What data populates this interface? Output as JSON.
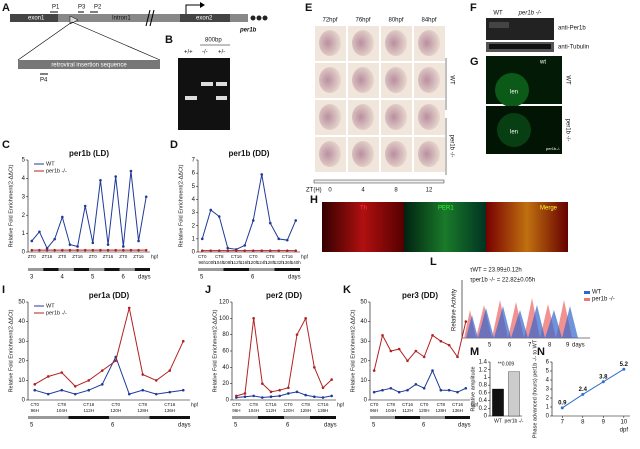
{
  "panel_letters": [
    "A",
    "B",
    "C",
    "D",
    "E",
    "F",
    "G",
    "H",
    "I",
    "J",
    "K",
    "L",
    "M",
    "N"
  ],
  "panel_a": {
    "exon1": "exon1",
    "p1": "P1",
    "p3": "P3",
    "p2": "P2",
    "intron": "Intron1",
    "exon2": "exon2",
    "gene": "per1b",
    "insert": "retroviral insertion sequence",
    "p4": "P4"
  },
  "panel_b": {
    "size": "800bp",
    "lanes": [
      "+/+",
      "-/-",
      "+/-"
    ]
  },
  "panel_e": {
    "times": [
      "72hpf",
      "76hpf",
      "80hpf",
      "84hpf"
    ],
    "wt": "WT",
    "mut": "per1b -/-",
    "zt_label": "ZT(H)",
    "zt": [
      "0",
      "4",
      "8",
      "12"
    ]
  },
  "panel_f": {
    "wt": "WT",
    "mut": "per1b -/-",
    "top": "anti-Per1b",
    "bottom": "anti-Tubulin"
  },
  "panel_g": {
    "arrow": "wt",
    "wt": "WT",
    "len1": "len",
    "len2": "len",
    "mut": "per1b -/-",
    "mut_small": "per1b-/-"
  },
  "panel_h": {
    "c1": "Th",
    "c2": "PER1",
    "c3": "Merge"
  },
  "panel_l": {
    "tau_wt": "τWT = 23.99±0.12h",
    "tau_mut": "τper1b -/- = 22.82±0.05h",
    "y_label": "Relative Activity",
    "legend": [
      "WT",
      "per1b -/-"
    ],
    "ticks": [
      "5",
      "6",
      "7",
      "8",
      "9"
    ],
    "unit": "days"
  },
  "chart_data": [
    {
      "type": "line",
      "title": "per1b (LD)",
      "y_label": "Relative Fold Enrichment(2-ΔΔCt)",
      "categories": [
        "ZT0",
        null,
        "ZT16",
        null,
        "ZT0",
        null,
        "ZT16",
        null,
        "ZT0",
        null,
        "ZT16",
        null,
        "ZT0",
        null,
        "ZT16",
        null
      ],
      "series": [
        {
          "name": "WT",
          "color": "#1f3a99",
          "values": [
            0.6,
            1.1,
            0.2,
            0.7,
            1.9,
            0.4,
            0.3,
            2.5,
            0.5,
            3.9,
            0.4,
            4.1,
            0.3,
            4.4,
            0.6,
            3.0
          ]
        },
        {
          "name": "per1b -/-",
          "color": "#b22222",
          "values": [
            0.1,
            0.1,
            0.1,
            0.1,
            0.1,
            0.1,
            0.1,
            0.1,
            0.1,
            0.1,
            0.1,
            0.1,
            0.1,
            0.1,
            0.1,
            0.1
          ]
        }
      ],
      "ylim": [
        0,
        5
      ],
      "yticks": [
        0,
        1,
        2,
        3,
        4,
        5
      ],
      "day_labels": [
        "3",
        "4",
        "5",
        "6"
      ],
      "day_unit": "days",
      "x_unit": "hpf",
      "legend": true
    },
    {
      "type": "line",
      "title": "per1b (DD)",
      "y_label": "Relative Fold Enrichment(2-ΔΔCt)",
      "categories": [
        "CT0",
        null,
        "CT8",
        null,
        "CT16",
        null,
        "CT0",
        null,
        "CT8",
        null,
        "CT16",
        null
      ],
      "hour_labels": [
        "96h",
        "100h",
        "104h",
        "108h",
        "112h",
        "116h",
        "120h",
        "124h",
        "128h",
        "132h",
        "136h",
        "140h"
      ],
      "series": [
        {
          "name": "WT",
          "color": "#1f3a99",
          "values": [
            1.0,
            3.2,
            2.7,
            0.3,
            0.2,
            0.5,
            2.4,
            5.9,
            2.2,
            1.0,
            0.9,
            2.4
          ]
        },
        {
          "name": "per1b -/-",
          "color": "#b22222",
          "values": [
            0.1,
            0.1,
            0.1,
            0.1,
            0.1,
            0.1,
            0.1,
            0.1,
            0.1,
            0.1,
            0.1,
            0.1
          ]
        }
      ],
      "ylim": [
        0,
        7
      ],
      "yticks": [
        0,
        1,
        2,
        3,
        4,
        5,
        6,
        7
      ],
      "day_labels": [
        "5",
        "6"
      ],
      "day_unit": "days",
      "x_unit": "hpf",
      "legend": false
    },
    {
      "type": "line",
      "title": "per1a (DD)",
      "y_label": "Relative Fold Enrichment(2-ΔΔCt)",
      "categories": [
        "CT0",
        null,
        "CT8",
        null,
        "CT16",
        null,
        "CT0",
        null,
        "CT8",
        null,
        "CT16",
        null
      ],
      "hour_labels": [
        "96H",
        null,
        "104H",
        null,
        "112H",
        null,
        "120H",
        null,
        "128H",
        null,
        "136H",
        null
      ],
      "series": [
        {
          "name": "WT",
          "color": "#1f3a99",
          "values": [
            5,
            3,
            5,
            3,
            5,
            8,
            22,
            3,
            5,
            3,
            4,
            5
          ]
        },
        {
          "name": "per1b -/-",
          "color": "#b22222",
          "values": [
            8,
            12,
            14,
            7,
            10,
            15,
            20,
            47,
            13,
            10,
            15,
            30
          ]
        }
      ],
      "ylim": [
        0,
        50
      ],
      "yticks": [
        0,
        10,
        20,
        30,
        40,
        50
      ],
      "day_labels": [
        "5",
        "6"
      ],
      "day_unit": "days",
      "x_unit": "hpf",
      "legend": true
    },
    {
      "type": "line",
      "title": "per2 (DD)",
      "y_label": "Relative Fold Enrichment(2-ΔΔCt)",
      "categories": [
        "CT0",
        null,
        "CT8",
        null,
        "CT16",
        null,
        "CT0",
        null,
        "CT8",
        null,
        "CT16",
        null
      ],
      "hour_labels": [
        "96H",
        null,
        "104H",
        null,
        "112H",
        null,
        "120H",
        null,
        "128H",
        null,
        "136H",
        null
      ],
      "series": [
        {
          "name": "WT",
          "color": "#1f3a99",
          "values": [
            3,
            4,
            5,
            3,
            4,
            5,
            8,
            10,
            6,
            4,
            3,
            5
          ]
        },
        {
          "name": "per1b -/-",
          "color": "#b22222",
          "values": [
            5,
            8,
            100,
            20,
            10,
            12,
            15,
            80,
            100,
            40,
            15,
            25
          ]
        }
      ],
      "ylim": [
        0,
        120
      ],
      "yticks": [
        0,
        20,
        40,
        60,
        80,
        100,
        120
      ],
      "day_labels": [
        "5",
        "6"
      ],
      "day_unit": "days",
      "x_unit": "hpf",
      "legend": false
    },
    {
      "type": "line",
      "title": "per3 (DD)",
      "y_label": "Relative Fold Enrichment(2-ΔΔCt)",
      "categories": [
        "CT0",
        null,
        "CT8",
        null,
        "CT16",
        null,
        "CT0",
        null,
        "CT8",
        null,
        "CT16",
        null
      ],
      "hour_labels": [
        "96H",
        null,
        "104H",
        null,
        "112H",
        null,
        "120H",
        null,
        "128H",
        null,
        "136H",
        null
      ],
      "series": [
        {
          "name": "WT",
          "color": "#1f3a99",
          "values": [
            4,
            5,
            6,
            4,
            5,
            8,
            6,
            15,
            5,
            5,
            4,
            6
          ]
        },
        {
          "name": "per1b -/-",
          "color": "#b22222",
          "values": [
            15,
            33,
            25,
            26,
            20,
            25,
            22,
            33,
            30,
            28,
            22,
            40
          ]
        }
      ],
      "ylim": [
        0,
        50
      ],
      "yticks": [
        0,
        10,
        20,
        30,
        40,
        50
      ],
      "day_labels": [
        "5",
        "6"
      ],
      "day_unit": "days",
      "x_unit": "hpf",
      "legend": false
    },
    {
      "type": "bar",
      "y_label": "Relative amplitude",
      "categories": [
        "WT",
        "per1b -/-"
      ],
      "values": [
        0.7,
        1.15
      ],
      "colors": [
        "#111111",
        "#cccccc"
      ],
      "annotation": "**0.009",
      "ylim": [
        0,
        1.4
      ],
      "yticks": [
        0,
        0.2,
        0.4,
        0.6,
        0.8,
        1,
        1.2,
        1.4
      ]
    },
    {
      "type": "scatterline",
      "y_label": "Phase advanced (hours) per1b -/- to WT",
      "x_label": "dpf",
      "x": [
        7,
        8,
        9,
        10
      ],
      "values": [
        0.9,
        2.4,
        3.8,
        5.2
      ],
      "color": "#2f6fd0",
      "xlim": [
        6.5,
        10.3
      ],
      "xticks": [
        7,
        8,
        9,
        10
      ],
      "ylim": [
        0,
        6
      ],
      "yticks": [
        0,
        1,
        2,
        3,
        4,
        5,
        6
      ]
    }
  ]
}
